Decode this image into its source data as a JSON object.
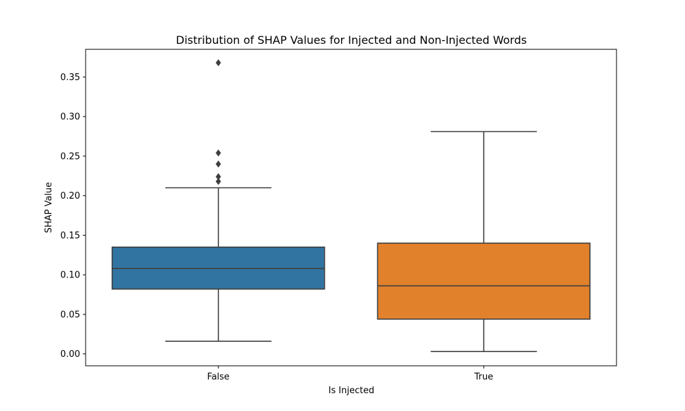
{
  "chart_data": {
    "type": "box",
    "title": "Distribution of SHAP Values for Injected and Non-Injected Words",
    "xlabel": "Is Injected",
    "ylabel": "SHAP Value",
    "ylim": [
      -0.015,
      0.385
    ],
    "yticks": [
      "0.00",
      "0.05",
      "0.10",
      "0.15",
      "0.20",
      "0.25",
      "0.30",
      "0.35"
    ],
    "grid": false,
    "categories": [
      "False",
      "True"
    ],
    "boxes": [
      {
        "category": "False",
        "color": "#3274a1",
        "whisker_low": 0.016,
        "q1": 0.082,
        "median": 0.108,
        "q3": 0.135,
        "whisker_high": 0.21,
        "outliers": [
          0.218,
          0.224,
          0.24,
          0.254,
          0.368
        ]
      },
      {
        "category": "True",
        "color": "#e1812c",
        "whisker_low": 0.003,
        "q1": 0.044,
        "median": 0.086,
        "q3": 0.14,
        "whisker_high": 0.281,
        "outliers": []
      }
    ]
  }
}
